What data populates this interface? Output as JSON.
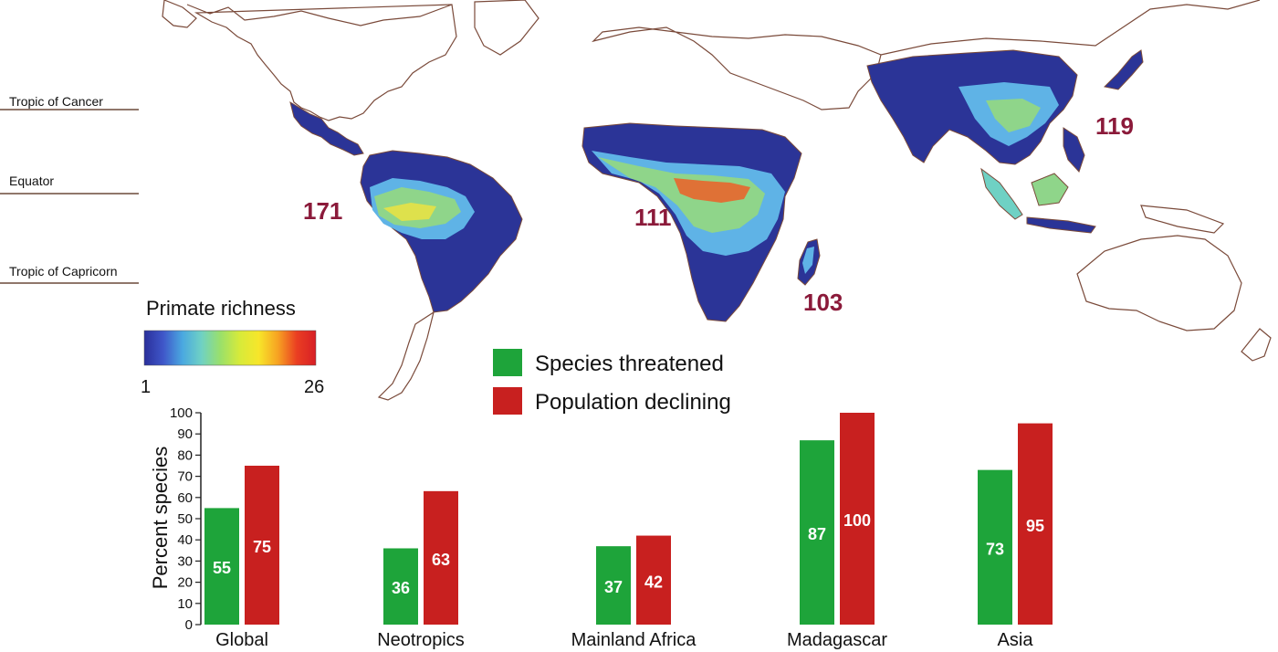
{
  "map": {
    "lines": [
      {
        "label": "Tropic of Cancer"
      },
      {
        "label": "Equator"
      },
      {
        "label": "Tropic of Capricorn"
      }
    ],
    "region_counts": [
      {
        "region": "Neotropics",
        "value": "171"
      },
      {
        "region": "Mainland Africa",
        "value": "111"
      },
      {
        "region": "Madagascar",
        "value": "103"
      },
      {
        "region": "Asia",
        "value": "119"
      }
    ],
    "scale": {
      "title": "Primate richness",
      "min_label": "1",
      "max_label": "26",
      "colors": [
        "#2a2f9b",
        "#3f57c9",
        "#4aa8e0",
        "#6fd1c4",
        "#9ae06a",
        "#d7ea3a",
        "#f7e62a",
        "#f7a322",
        "#ea3e22",
        "#d71f26"
      ]
    },
    "colors": {
      "low": "#2b3497",
      "mid": "#5fb3e6",
      "high": "#8fd58a",
      "peak": "#f1e33c",
      "hot": "#e8662c",
      "coast": "#7a4a3a"
    }
  },
  "chart_data": {
    "type": "bar",
    "categories": [
      "Global",
      "Neotropics",
      "Mainland Africa",
      "Madagascar",
      "Asia"
    ],
    "series": [
      {
        "name": "Species threatened",
        "color": "#1ea43a",
        "values": [
          55,
          36,
          37,
          87,
          73
        ],
        "labels": [
          "55",
          "36",
          "37",
          "87",
          "73"
        ]
      },
      {
        "name": "Population declining",
        "color": "#c8201f",
        "values": [
          75,
          63,
          42,
          100,
          95
        ],
        "labels": [
          "75",
          "63",
          "42",
          "100",
          "95"
        ]
      }
    ],
    "ylabel": "Percent species",
    "ylim": [
      0,
      100
    ],
    "yticks": [
      "0",
      "10",
      "20",
      "30",
      "40",
      "50",
      "60",
      "70",
      "80",
      "90",
      "100"
    ],
    "legend_placement": "top-center",
    "grid": false
  }
}
